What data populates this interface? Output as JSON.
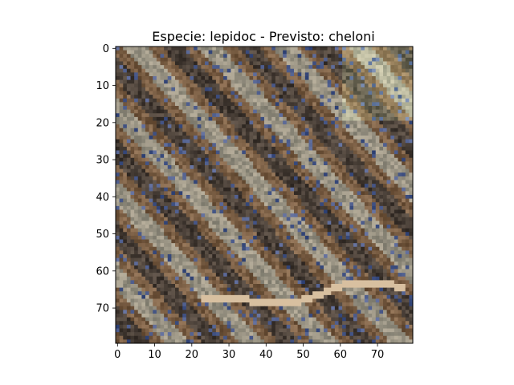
{
  "chart_data": {
    "type": "heatmap",
    "title": "Especie: lepidoc - Previsto: cheloni",
    "xlabel": "",
    "ylabel": "",
    "image_size": [
      80,
      80
    ],
    "xlim": [
      -0.5,
      79.5
    ],
    "ylim": [
      79.5,
      -0.5
    ],
    "x_ticks": [
      0,
      10,
      20,
      30,
      40,
      50,
      60,
      70
    ],
    "y_ticks": [
      0,
      10,
      20,
      30,
      40,
      50,
      60,
      70
    ],
    "grid": false,
    "legend": "none",
    "content": "RGB satellite image patch of terrain with diagonal brown/grey ridges and a pale winding track near the bottom",
    "colors": {
      "brown": "#7a5e44",
      "dark": "#4a4038",
      "grey": "#9a9484",
      "blue": "#4a5a8a",
      "track": "#d8c0a0"
    }
  }
}
